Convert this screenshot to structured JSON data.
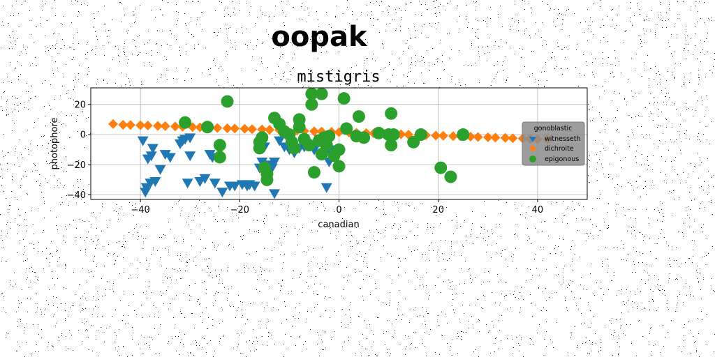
{
  "figure": {
    "suptitle": "oopak",
    "colors": {
      "witnesseth": "#1f77b4",
      "dichroite": "#ff7f0e",
      "epigonous": "#2ca02c",
      "legend_bg": "#8c8c8c"
    }
  },
  "chart_data": {
    "type": "scatter",
    "title": "mistigris",
    "xlabel": "canadian",
    "ylabel": "photophore",
    "xlim": [
      -50,
      50
    ],
    "ylim": [
      -43,
      31
    ],
    "xticks": [
      -40,
      -20,
      0,
      20,
      40
    ],
    "yticks": [
      -40,
      -20,
      0,
      20
    ],
    "grid": true,
    "legend": {
      "title": "gonoblastic",
      "placement": "right"
    },
    "series": [
      {
        "name": "witnesseth",
        "marker": "triangle-down",
        "color": "#1f77b4",
        "points": [
          [
            -39.5,
            -4
          ],
          [
            -39,
            -38
          ],
          [
            -38.8,
            -35
          ],
          [
            -38.5,
            -16
          ],
          [
            -38,
            -32
          ],
          [
            -37.8,
            -14
          ],
          [
            -37.5,
            -9
          ],
          [
            -37,
            -31
          ],
          [
            -36,
            -23
          ],
          [
            -35,
            -13
          ],
          [
            -34,
            -15
          ],
          [
            -32,
            -6
          ],
          [
            -31.5,
            -4
          ],
          [
            -31,
            -3
          ],
          [
            -30.5,
            -32
          ],
          [
            -30,
            -2
          ],
          [
            -30,
            -14
          ],
          [
            -28,
            -31
          ],
          [
            -27,
            -29
          ],
          [
            -26,
            -13
          ],
          [
            -25.5,
            -15
          ],
          [
            -25,
            -32
          ],
          [
            -24,
            -10
          ],
          [
            -23.5,
            -38
          ],
          [
            -22,
            -34
          ],
          [
            -21,
            -34
          ],
          [
            -19.5,
            -33
          ],
          [
            -18.5,
            -34
          ],
          [
            -18,
            -33
          ],
          [
            -17,
            -34
          ],
          [
            -16,
            -22
          ],
          [
            -15.5,
            -18
          ],
          [
            -15,
            -8
          ],
          [
            -14,
            -20
          ],
          [
            -13.5,
            -22
          ],
          [
            -13,
            -18
          ],
          [
            -13,
            -39
          ],
          [
            -12,
            -4
          ],
          [
            -11,
            -8
          ],
          [
            -10,
            -10
          ],
          [
            -9,
            -12
          ],
          [
            -8,
            -9
          ],
          [
            -7,
            -8
          ],
          [
            -6,
            -7
          ],
          [
            -5,
            -10
          ],
          [
            -4,
            -3
          ],
          [
            -3,
            -9
          ],
          [
            -2.5,
            -35
          ],
          [
            -2,
            -18
          ],
          [
            -1.5,
            -13
          ],
          [
            -1,
            -10
          ]
        ]
      },
      {
        "name": "dichroite",
        "marker": "diamond",
        "color": "#ff7f0e",
        "points": [
          [
            -45.5,
            7
          ],
          [
            -43.5,
            6.5
          ],
          [
            -42,
            6.4
          ],
          [
            -40,
            6.2
          ],
          [
            -38.5,
            6
          ],
          [
            -36.5,
            5.8
          ],
          [
            -35,
            5.6
          ],
          [
            -33,
            5.4
          ],
          [
            -31.5,
            5.2
          ],
          [
            -29.5,
            5
          ],
          [
            -28,
            4.8
          ],
          [
            -26,
            4.6
          ],
          [
            -24.5,
            4.4
          ],
          [
            -22.5,
            4.2
          ],
          [
            -21,
            4
          ],
          [
            -19,
            3.8
          ],
          [
            -17.5,
            3.6
          ],
          [
            -15.5,
            3.4
          ],
          [
            -14,
            3.2
          ],
          [
            -12,
            3
          ],
          [
            -10.5,
            2.8
          ],
          [
            -8.5,
            2.6
          ],
          [
            -7,
            2.4
          ],
          [
            -5,
            2.2
          ],
          [
            -3.5,
            2
          ],
          [
            -1.5,
            1.8
          ],
          [
            0,
            1.6
          ],
          [
            2,
            1.4
          ],
          [
            3.5,
            1.2
          ],
          [
            5.5,
            1
          ],
          [
            7,
            0.8
          ],
          [
            9,
            0.6
          ],
          [
            10.5,
            0.4
          ],
          [
            12.5,
            0.2
          ],
          [
            14,
            0
          ],
          [
            16,
            -0.2
          ],
          [
            17.5,
            -0.4
          ],
          [
            19.5,
            -0.6
          ],
          [
            21,
            -0.8
          ],
          [
            23,
            -1
          ],
          [
            24.5,
            -1.2
          ],
          [
            26.5,
            -1.4
          ],
          [
            28,
            -1.6
          ],
          [
            30,
            -1.8
          ],
          [
            31.5,
            -2
          ],
          [
            33.5,
            -2.2
          ],
          [
            35,
            -2.4
          ],
          [
            37,
            -2.6
          ],
          [
            38.5,
            -2.8
          ],
          [
            40,
            -3
          ],
          [
            42,
            -3.2
          ]
        ]
      },
      {
        "name": "epigonous",
        "marker": "circle",
        "color": "#2ca02c",
        "points": [
          [
            -31,
            8
          ],
          [
            -26.5,
            5
          ],
          [
            -24,
            -7
          ],
          [
            -24,
            -15
          ],
          [
            -22.5,
            22
          ],
          [
            -16,
            -9
          ],
          [
            -16,
            -5
          ],
          [
            -15.5,
            -2
          ],
          [
            -15,
            -22
          ],
          [
            -14.5,
            -26
          ],
          [
            -14.5,
            -30
          ],
          [
            -13,
            11
          ],
          [
            -12,
            7
          ],
          [
            -11,
            2
          ],
          [
            -10,
            0
          ],
          [
            -9.5,
            -5
          ],
          [
            -9,
            -9
          ],
          [
            -8,
            10
          ],
          [
            -8,
            5
          ],
          [
            -7,
            -3
          ],
          [
            -6,
            -7
          ],
          [
            -5.5,
            27
          ],
          [
            -5.5,
            20
          ],
          [
            -5,
            -25
          ],
          [
            -4,
            -4
          ],
          [
            -3.5,
            27
          ],
          [
            -3.5,
            -13
          ],
          [
            -3,
            -2
          ],
          [
            -2.5,
            -7
          ],
          [
            -2,
            -1
          ],
          [
            -1,
            -14
          ],
          [
            0,
            -10
          ],
          [
            0,
            -21
          ],
          [
            1,
            24
          ],
          [
            1.5,
            4
          ],
          [
            3.5,
            -1
          ],
          [
            4,
            12
          ],
          [
            5,
            -2
          ],
          [
            8,
            1
          ],
          [
            10,
            0
          ],
          [
            10.5,
            14
          ],
          [
            10.5,
            -7
          ],
          [
            11,
            0
          ],
          [
            15,
            -5
          ],
          [
            16.5,
            0
          ],
          [
            20.5,
            -22
          ],
          [
            22.5,
            -28
          ],
          [
            25,
            0
          ]
        ]
      }
    ]
  }
}
